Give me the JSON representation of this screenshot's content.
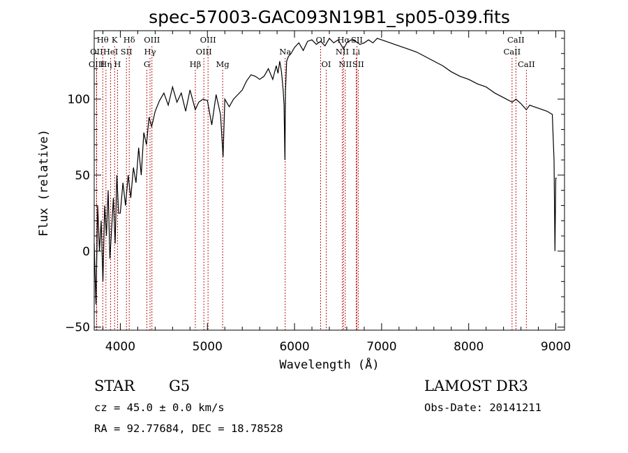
{
  "chart_data": {
    "type": "line",
    "title": "spec-57003-GAC093N19B1_sp05-039.fits",
    "xlabel": "Wavelength (Å)",
    "ylabel": "Flux (relative)",
    "xlim": [
      3700,
      9100
    ],
    "ylim": [
      -52,
      145
    ],
    "xticks": [
      4000,
      5000,
      6000,
      7000,
      8000,
      9000
    ],
    "yticks": [
      -50,
      0,
      50,
      100
    ],
    "xtick_labels": [
      "4000",
      "5000",
      "6000",
      "7000",
      "8000",
      "9000"
    ],
    "ytick_labels": [
      "−50",
      "0",
      "50",
      "100"
    ],
    "series": [
      {
        "name": "flux",
        "x": [
          3700,
          3720,
          3740,
          3760,
          3780,
          3800,
          3820,
          3840,
          3860,
          3880,
          3900,
          3920,
          3940,
          3960,
          3980,
          4000,
          4030,
          4060,
          4090,
          4120,
          4150,
          4180,
          4210,
          4240,
          4270,
          4300,
          4330,
          4360,
          4400,
          4450,
          4500,
          4550,
          4600,
          4650,
          4700,
          4750,
          4800,
          4861,
          4900,
          4950,
          5000,
          5050,
          5100,
          5150,
          5180,
          5200,
          5250,
          5300,
          5350,
          5400,
          5450,
          5500,
          5550,
          5600,
          5650,
          5700,
          5750,
          5790,
          5810,
          5830,
          5850,
          5870,
          5880,
          5890,
          5896,
          5910,
          5930,
          5960,
          6000,
          6050,
          6100,
          6150,
          6200,
          6250,
          6300,
          6350,
          6400,
          6450,
          6500,
          6563,
          6600,
          6650,
          6700,
          6750,
          6800,
          6850,
          6900,
          6950,
          7000,
          7100,
          7200,
          7300,
          7400,
          7500,
          7600,
          7700,
          7800,
          7900,
          8000,
          8100,
          8200,
          8300,
          8400,
          8500,
          8542,
          8600,
          8662,
          8700,
          8800,
          8900,
          8960,
          8980,
          8990,
          9000,
          9010
        ],
        "y": [
          5,
          -35,
          30,
          0,
          20,
          -20,
          30,
          10,
          40,
          -5,
          15,
          35,
          5,
          50,
          25,
          25,
          45,
          30,
          50,
          35,
          55,
          45,
          68,
          50,
          78,
          70,
          88,
          82,
          92,
          99,
          104,
          96,
          108,
          98,
          104,
          92,
          106,
          93,
          98,
          100,
          99,
          83,
          103,
          90,
          62,
          100,
          95,
          100,
          103,
          106,
          112,
          116,
          115,
          113,
          115,
          120,
          113,
          122,
          117,
          125,
          118,
          106,
          96,
          60,
          105,
          125,
          128,
          130,
          134,
          137,
          132,
          138,
          139,
          136,
          138,
          135,
          140,
          137,
          139,
          133,
          137,
          139,
          138,
          136,
          137,
          139,
          137,
          140,
          139,
          137,
          135,
          133,
          131,
          128,
          125,
          122,
          118,
          115,
          113,
          110,
          108,
          104,
          101,
          98,
          100,
          97,
          93,
          96,
          94,
          92,
          90,
          60,
          0,
          48,
          48
        ]
      }
    ],
    "spectral_lines": [
      {
        "label": "Hθ",
        "x": 3798,
        "row": 1
      },
      {
        "label": "OII",
        "x": 3727,
        "row": 2
      },
      {
        "label": "OIII",
        "x": 3727,
        "row": 3
      },
      {
        "label": "K",
        "x": 3934,
        "row": 1
      },
      {
        "label": "HeI",
        "x": 3889,
        "row": 2
      },
      {
        "label": "Hη",
        "x": 3835,
        "row": 3
      },
      {
        "label": "SII",
        "x": 4070,
        "row": 2
      },
      {
        "label": "Hδ",
        "x": 4102,
        "row": 1
      },
      {
        "label": "H",
        "x": 3968,
        "row": 3
      },
      {
        "label": "OIII",
        "x": 4363,
        "row": 1
      },
      {
        "label": "Hγ",
        "x": 4341,
        "row": 2
      },
      {
        "label": "G",
        "x": 4305,
        "row": 3
      },
      {
        "label": "OIII",
        "x": 5007,
        "row": 1
      },
      {
        "label": "OIII",
        "x": 4959,
        "row": 2
      },
      {
        "label": "Hβ",
        "x": 4861,
        "row": 3
      },
      {
        "label": "Mg",
        "x": 5175,
        "row": 3
      },
      {
        "label": "Na",
        "x": 5893,
        "row": 2
      },
      {
        "label": "OI",
        "x": 6300,
        "row": 1
      },
      {
        "label": "OI",
        "x": 6364,
        "row": 3
      },
      {
        "label": "Hα",
        "x": 6563,
        "row": 1
      },
      {
        "label": "NII",
        "x": 6548,
        "row": 2
      },
      {
        "label": "NII",
        "x": 6583,
        "row": 3
      },
      {
        "label": "SII",
        "x": 6716,
        "row": 1
      },
      {
        "label": "Li",
        "x": 6708,
        "row": 2
      },
      {
        "label": "SII",
        "x": 6731,
        "row": 3
      },
      {
        "label": "CaII",
        "x": 8542,
        "row": 1
      },
      {
        "label": "CaII",
        "x": 8498,
        "row": 2
      },
      {
        "label": "CaII",
        "x": 8662,
        "row": 3
      }
    ]
  },
  "info": {
    "object_class": "STAR",
    "subclass": "G5",
    "survey": "LAMOST DR3",
    "redshift": "cz =  45.0 ±  0.0 km/s",
    "obs_date": "Obs-Date: 20141211",
    "coords": "RA =  92.77684, DEC =  18.78528"
  }
}
